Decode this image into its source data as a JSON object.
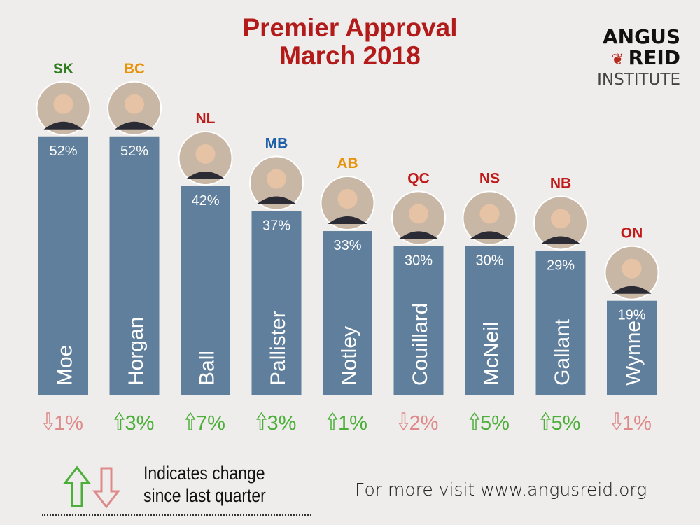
{
  "chart_data": {
    "type": "bar",
    "title_line1": "Premier Approval",
    "title_line2": "March 2018",
    "categories": [
      "Moe",
      "Horgan",
      "Ball",
      "Pallister",
      "Notley",
      "Couillard",
      "McNeil",
      "Gallant",
      "Wynne"
    ],
    "provinces": [
      "SK",
      "BC",
      "NL",
      "MB",
      "AB",
      "QC",
      "NS",
      "NB",
      "ON"
    ],
    "province_colors": [
      "#2e7d1f",
      "#e8930c",
      "#c01b1b",
      "#1f5fa8",
      "#e8930c",
      "#c01b1b",
      "#c01b1b",
      "#c01b1b",
      "#c01b1b"
    ],
    "values": [
      52,
      52,
      42,
      37,
      33,
      30,
      30,
      29,
      19
    ],
    "value_labels": [
      "52%",
      "52%",
      "42%",
      "37%",
      "33%",
      "30%",
      "30%",
      "29%",
      "19%"
    ],
    "changes": [
      -1,
      3,
      7,
      3,
      1,
      -2,
      5,
      5,
      -1
    ],
    "change_labels": [
      "1%",
      "3%",
      "7%",
      "3%",
      "1%",
      "2%",
      "5%",
      "5%",
      "1%"
    ],
    "ylim": [
      0,
      55
    ],
    "bar_color": "#5f7f9c",
    "up_color": "#4caf3a",
    "down_color": "#de8a8a"
  },
  "logo": {
    "line1": "ANGUS",
    "line2": "REID",
    "line3": "INSTITUTE"
  },
  "legend": {
    "line1": "Indicates change",
    "line2": "since last quarter"
  },
  "footer": "For more visit www.angusreid.org"
}
